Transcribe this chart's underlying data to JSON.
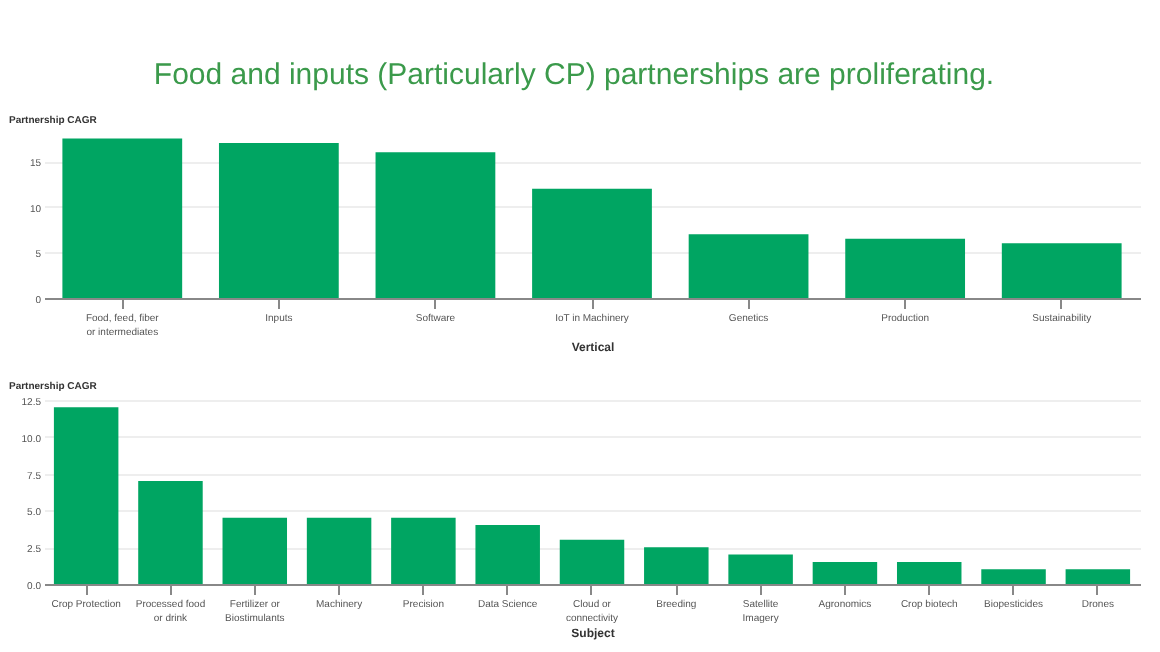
{
  "chart_data": [
    {
      "type": "bar",
      "title": "Food and inputs (Particularly CP) partnerships are proliferating.",
      "ylabel": "Partnership CAGR",
      "xlabel": "Vertical",
      "categories": [
        "Food, feed, fiber or intermediates",
        "Inputs",
        "Software",
        "IoT in Machinery",
        "Genetics",
        "Production",
        "Sustainability"
      ],
      "values": [
        17.5,
        17.0,
        16.0,
        12.0,
        7.0,
        6.5,
        6.0
      ],
      "color": "#00a562",
      "ylim": [
        0,
        18
      ],
      "yticks": [
        0,
        5,
        10,
        15
      ],
      "grid": "y"
    },
    {
      "type": "bar",
      "ylabel": "Partnership CAGR",
      "xlabel": "Subject",
      "categories": [
        "Crop Protection",
        "Processed food or drink",
        "Fertilizer or Biostimulants",
        "Machinery",
        "Precision",
        "Data Science",
        "Cloud or connectivity",
        "Breeding",
        "Satellite Imagery",
        "Agronomics",
        "Crop biotech",
        "Biopesticides",
        "Drones"
      ],
      "values": [
        12.0,
        7.0,
        4.5,
        4.5,
        4.5,
        4.0,
        3.0,
        2.5,
        2.0,
        1.5,
        1.5,
        1.0,
        1.0
      ],
      "color": "#00a562",
      "ylim": [
        0,
        12.5
      ],
      "yticks": [
        {
          "value": 0,
          "label": "0.0"
        },
        {
          "value": 2.5,
          "label": "2.5"
        },
        {
          "value": 5,
          "label": "5.0"
        },
        {
          "value": 7.5,
          "label": "7.5"
        },
        {
          "value": 10,
          "label": "10.0"
        },
        {
          "value": 12.5,
          "label": "12.5"
        }
      ],
      "grid": "y"
    }
  ]
}
